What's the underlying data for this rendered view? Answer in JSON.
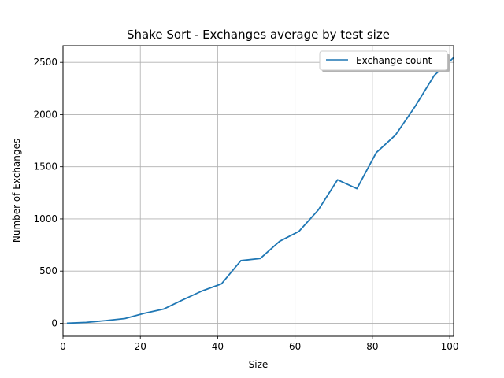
{
  "chart_data": {
    "type": "line",
    "title": "Shake Sort - Exchanges average by test size",
    "xlabel": "Size",
    "ylabel": "Number of Exchanges",
    "xlim": [
      0,
      101
    ],
    "ylim": [
      -125,
      2660
    ],
    "xticks": [
      0,
      20,
      40,
      60,
      80,
      100
    ],
    "xtick_labels": [
      "0",
      "20",
      "40",
      "60",
      "80",
      "100"
    ],
    "yticks": [
      0,
      500,
      1000,
      1500,
      2000,
      2500
    ],
    "ytick_labels": [
      "0",
      "500",
      "1000",
      "1500",
      "2000",
      "2500"
    ],
    "grid": true,
    "legend_position": "top-right",
    "series": [
      {
        "name": "Exchange count",
        "color": "#1f77b4",
        "x": [
          1,
          6,
          11,
          16,
          21,
          26,
          31,
          36,
          41,
          46,
          51,
          56,
          61,
          66,
          71,
          76,
          81,
          86,
          91,
          96,
          101
        ],
        "y": [
          0,
          8,
          25,
          45,
          95,
          135,
          225,
          310,
          378,
          600,
          620,
          785,
          880,
          1085,
          1375,
          1290,
          1635,
          1805,
          2075,
          2375,
          2545
        ]
      }
    ]
  }
}
